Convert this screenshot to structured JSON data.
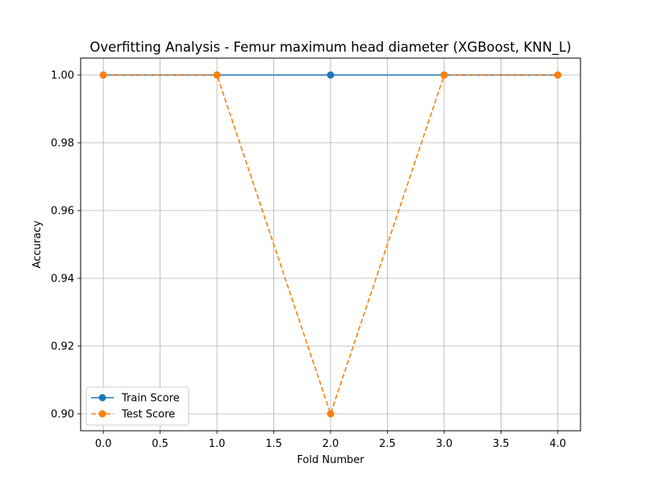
{
  "chart_data": {
    "type": "line",
    "title": "Overfitting Analysis - Femur maximum head diameter (XGBoost, KNN_L)",
    "xlabel": "Fold Number",
    "ylabel": "Accuracy",
    "xlim": [
      -0.2,
      4.2
    ],
    "ylim": [
      0.895,
      1.005
    ],
    "xticks": [
      "0.0",
      "0.5",
      "1.0",
      "1.5",
      "2.0",
      "2.5",
      "3.0",
      "3.5",
      "4.0"
    ],
    "yticks": [
      "0.90",
      "0.92",
      "0.94",
      "0.96",
      "0.98",
      "1.00"
    ],
    "grid": true,
    "legend_position": "lower-left",
    "series": [
      {
        "name": "Train Score",
        "color": "#1f77b4",
        "linestyle": "solid",
        "marker": "circle",
        "x": [
          0,
          1,
          2,
          3,
          4
        ],
        "values": [
          1.0,
          1.0,
          1.0,
          1.0,
          1.0
        ]
      },
      {
        "name": "Test Score",
        "color": "#ff7f0e",
        "linestyle": "dashed",
        "marker": "circle",
        "x": [
          0,
          1,
          2,
          3,
          4
        ],
        "values": [
          1.0,
          1.0,
          0.9,
          1.0,
          1.0
        ]
      }
    ]
  }
}
